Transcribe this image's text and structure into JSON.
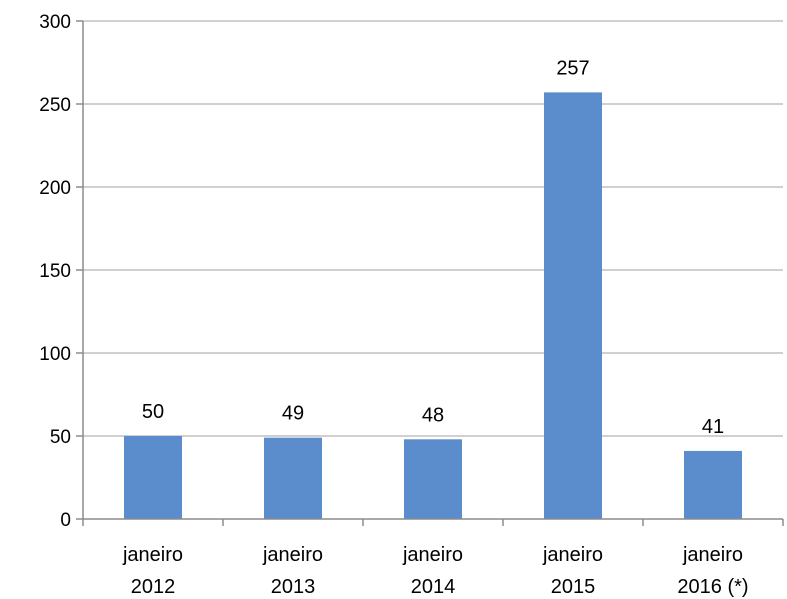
{
  "chart_data": {
    "type": "bar",
    "title": "",
    "xlabel": "",
    "ylabel": "",
    "categories": [
      [
        "janeiro",
        "2012"
      ],
      [
        "janeiro",
        "2013"
      ],
      [
        "janeiro",
        "2014"
      ],
      [
        "janeiro",
        "2015"
      ],
      [
        "janeiro",
        "2016 (*)"
      ]
    ],
    "values": [
      50,
      49,
      48,
      257,
      41
    ],
    "data_labels": [
      "50",
      "49",
      "48",
      "257",
      "41"
    ],
    "ylim": [
      0,
      300
    ],
    "yticks": [
      0,
      50,
      100,
      150,
      200,
      250,
      300
    ],
    "grid": true,
    "legend": "none",
    "colors": {
      "bar": "#5b8ccc",
      "grid": "#d0d0d0",
      "axis": "#8c8c8c",
      "text": "#000000"
    }
  }
}
